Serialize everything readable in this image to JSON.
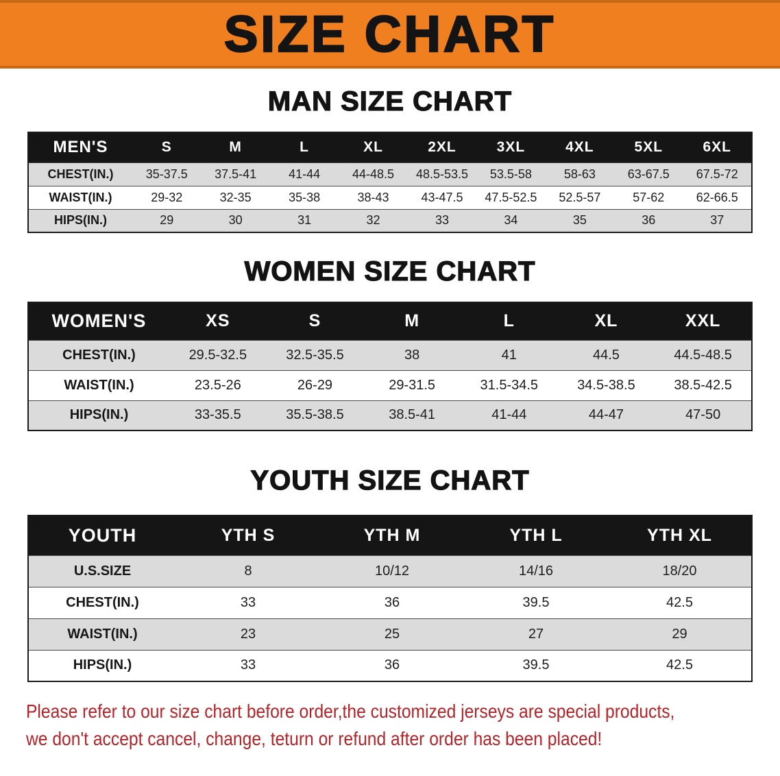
{
  "banner": {
    "title": "SIZE CHART"
  },
  "colors": {
    "banner_bg": "#F0801F",
    "header_bg": "#151515",
    "row_alt_bg": "#DBDBDB",
    "disclaimer_red": "#B42328"
  },
  "sections": [
    {
      "id": "men",
      "heading": "MAN SIZE CHART",
      "table": {
        "title": "MEN'S",
        "columns": [
          "S",
          "M",
          "L",
          "XL",
          "2XL",
          "3XL",
          "4XL",
          "5XL",
          "6XL"
        ],
        "rows": [
          {
            "label": "CHEST(IN.)",
            "values": [
              "35-37.5",
              "37.5-41",
              "41-44",
              "44-48.5",
              "48.5-53.5",
              "53.5-58",
              "58-63",
              "63-67.5",
              "67.5-72"
            ]
          },
          {
            "label": "WAIST(IN.)",
            "values": [
              "29-32",
              "32-35",
              "35-38",
              "38-43",
              "43-47.5",
              "47.5-52.5",
              "52.5-57",
              "57-62",
              "62-66.5"
            ]
          },
          {
            "label": "HIPS(IN.)",
            "values": [
              "29",
              "30",
              "31",
              "32",
              "33",
              "34",
              "35",
              "36",
              "37"
            ]
          }
        ]
      }
    },
    {
      "id": "women",
      "heading": "WOMEN SIZE CHART",
      "table": {
        "title": "WOMEN'S",
        "columns": [
          "XS",
          "S",
          "M",
          "L",
          "XL",
          "XXL"
        ],
        "rows": [
          {
            "label": "CHEST(IN.)",
            "values": [
              "29.5-32.5",
              "32.5-35.5",
              "38",
              "41",
              "44.5",
              "44.5-48.5"
            ]
          },
          {
            "label": "WAIST(IN.)",
            "values": [
              "23.5-26",
              "26-29",
              "29-31.5",
              "31.5-34.5",
              "34.5-38.5",
              "38.5-42.5"
            ]
          },
          {
            "label": "HIPS(IN.)",
            "values": [
              "33-35.5",
              "35.5-38.5",
              "38.5-41",
              "41-44",
              "44-47",
              "47-50"
            ]
          }
        ]
      }
    },
    {
      "id": "youth",
      "heading": "YOUTH SIZE CHART",
      "table": {
        "title": "YOUTH",
        "columns": [
          "YTH S",
          "YTH M",
          "YTH L",
          "YTH XL"
        ],
        "rows": [
          {
            "label": "U.S.SIZE",
            "values": [
              "8",
              "10/12",
              "14/16",
              "18/20"
            ]
          },
          {
            "label": "CHEST(IN.)",
            "values": [
              "33",
              "36",
              "39.5",
              "42.5"
            ]
          },
          {
            "label": "WAIST(IN.)",
            "values": [
              "23",
              "25",
              "27",
              "29"
            ]
          },
          {
            "label": "HIPS(IN.)",
            "values": [
              "33",
              "36",
              "39.5",
              "42.5"
            ]
          }
        ]
      }
    }
  ],
  "disclaimer": {
    "line1": "Please refer to our size chart before order,the customized jerseys are special products,",
    "line2": "we don't accept cancel, change, teturn or refund after order has been placed!"
  }
}
